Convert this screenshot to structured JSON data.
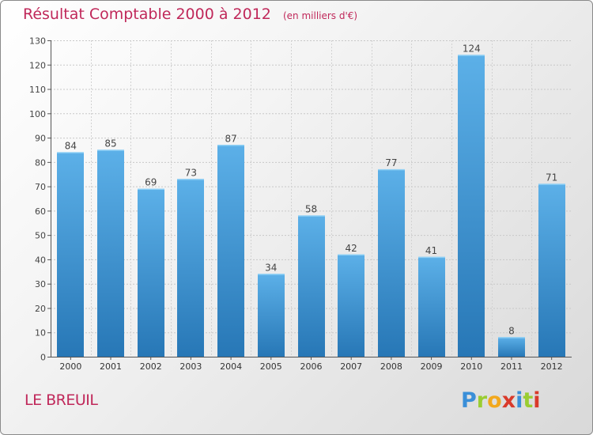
{
  "header": {
    "title": "Résultat Comptable 2000 à 2012",
    "unit": "(en milliers d'€)"
  },
  "footer": {
    "commune": "LE BREUIL",
    "logo": {
      "p": "P",
      "r": "r",
      "o": "o",
      "x": "x",
      "i1": "i",
      "t": "t",
      "i2": "i"
    }
  },
  "colors": {
    "bar_light": "#5aaee6",
    "bar_dark": "#2a7ab8",
    "title": "#c0285a"
  },
  "chart_data": {
    "type": "bar",
    "title": "Résultat Comptable 2000 à 2012",
    "ylabel": "(en milliers d'€)",
    "xlabel": "",
    "categories": [
      "2000",
      "2001",
      "2002",
      "2003",
      "2004",
      "2005",
      "2006",
      "2007",
      "2008",
      "2009",
      "2010",
      "2011",
      "2012"
    ],
    "values": [
      84,
      85,
      69,
      73,
      87,
      34,
      58,
      42,
      77,
      41,
      124,
      8,
      71
    ],
    "ylim": [
      0,
      130
    ],
    "yticks": [
      0,
      10,
      20,
      30,
      40,
      50,
      60,
      70,
      80,
      90,
      100,
      110,
      120,
      130
    ],
    "grid": true
  }
}
